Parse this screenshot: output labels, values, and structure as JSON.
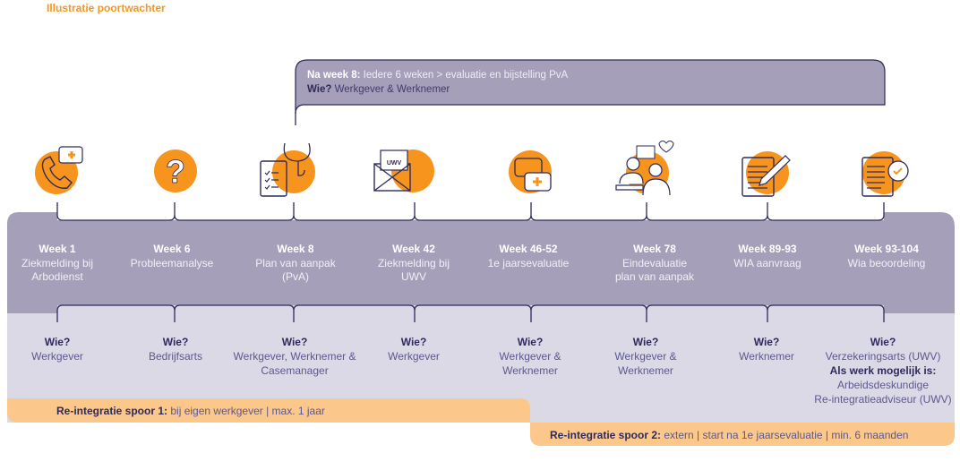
{
  "title": "Illustratie poortwachter",
  "callout": {
    "lead": "Na week 8:",
    "text": "Iedere 6 weken > evaluatie en bijstelling PvA",
    "who_label": "Wie?",
    "who": "Werkgever & Werknemer"
  },
  "steps": [
    {
      "week": "Week 1",
      "l1": "Ziekmelding bij",
      "l2": "Arbodienst",
      "icon": "phone-icon"
    },
    {
      "week": "Week 6",
      "l1": "Probleemanalyse",
      "l2": "",
      "icon": "question-icon"
    },
    {
      "week": "Week 8",
      "l1": "Plan van aanpak",
      "l2": "(PvA)",
      "icon": "clipboard-stethoscope-icon"
    },
    {
      "week": "Week 42",
      "l1": "Ziekmelding bij",
      "l2": "UWV",
      "icon": "envelope-uwv-icon",
      "icon_text": "UWV"
    },
    {
      "week": "Week 46-52",
      "l1": "1e jaarsevaluatie",
      "l2": "",
      "icon": "chat-plus-icon"
    },
    {
      "week": "Week 78",
      "l1": "Eindevaluatie",
      "l2": "plan van aanpak",
      "icon": "people-chat-icon"
    },
    {
      "week": "Week 89-93",
      "l1": "WIA aanvraag",
      "l2": "",
      "icon": "document-pen-icon"
    },
    {
      "week": "Week 93-104",
      "l1": "Wia beoordeling",
      "l2": "",
      "icon": "document-check-icon"
    }
  ],
  "who": [
    {
      "label": "Wie?",
      "l1": "Werkgever",
      "l2": ""
    },
    {
      "label": "Wie?",
      "l1": "Bedrijfsarts",
      "l2": ""
    },
    {
      "label": "Wie?",
      "l1": "Werkgever, Werknemer &",
      "l2": "Casemanager"
    },
    {
      "label": "Wie?",
      "l1": "Werkgever",
      "l2": ""
    },
    {
      "label": "Wie?",
      "l1": "Werkgever &",
      "l2": "Werknemer"
    },
    {
      "label": "Wie?",
      "l1": "Werkgever &",
      "l2": "Werknemer"
    },
    {
      "label": "Wie?",
      "l1": "Werknemer",
      "l2": ""
    },
    {
      "label": "Wie?",
      "l1": "Verzekeringsarts (UWV)",
      "l2": "",
      "extra_bold": "Als werk mogelijk is:",
      "extra1": "Arbeidsdeskundige",
      "extra2": "Re-integratieadviseur (UWV)"
    }
  ],
  "spoor1": {
    "lead": "Re-integratie spoor 1:",
    "text": "bij eigen werkgever | max. 1 jaar"
  },
  "spoor2": {
    "lead": "Re-integratie spoor 2:",
    "text": "extern | start na 1e jaarsevaluatie | min. 6 maanden"
  },
  "colors": {
    "orange": "#f7941d",
    "purple": "#a59fba",
    "lavender": "#dcd9e6",
    "peach": "#fbc78a",
    "navy": "#2e2a5c"
  }
}
